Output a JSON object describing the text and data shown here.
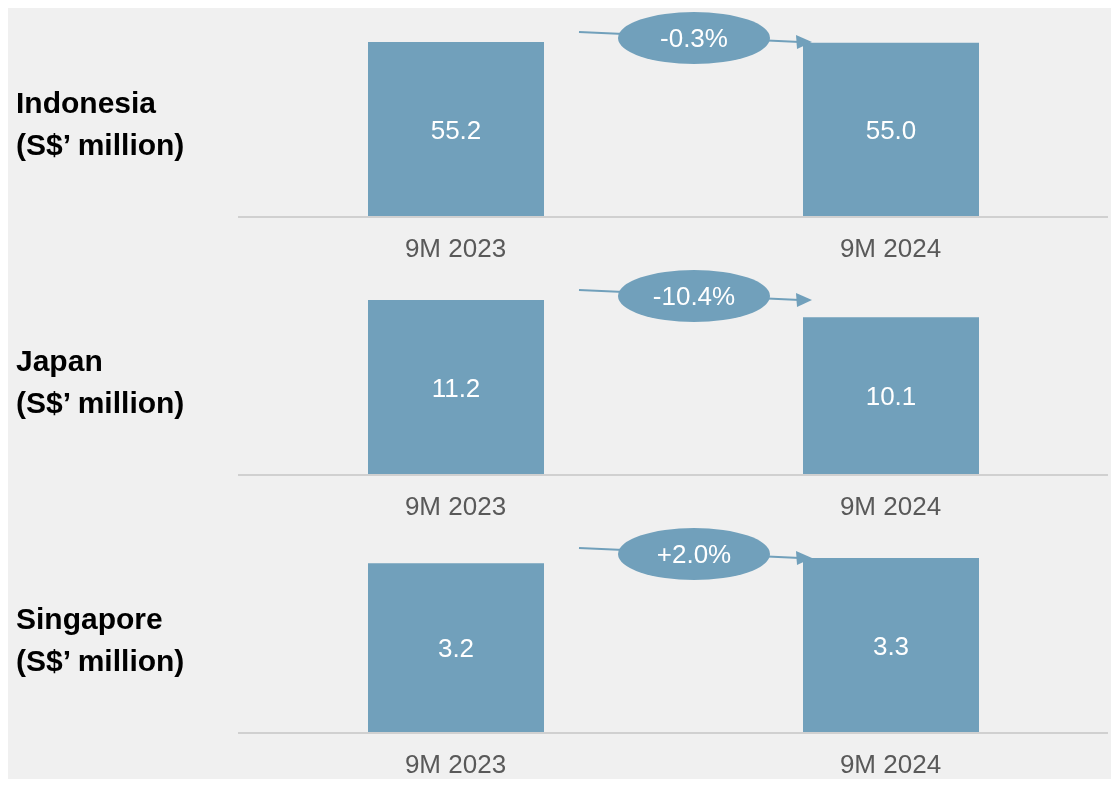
{
  "chart_data": [
    {
      "type": "bar",
      "ylabel": "Indonesia\n(S$’ million)",
      "categories": [
        "9M 2023",
        "9M 2024"
      ],
      "values": [
        55.2,
        55.0
      ],
      "value_labels": [
        "55.2",
        "55.0"
      ],
      "color": "#71a0bb",
      "grid": false,
      "legend": false,
      "annotations": [
        "-0.3%"
      ]
    },
    {
      "type": "bar",
      "ylabel": "Japan\n(S$’ million)",
      "categories": [
        "9M 2023",
        "9M 2024"
      ],
      "values": [
        11.2,
        10.1
      ],
      "value_labels": [
        "11.2",
        "10.1"
      ],
      "color": "#71a0bb",
      "grid": false,
      "legend": false,
      "annotations": [
        "-10.4%"
      ]
    },
    {
      "type": "bar",
      "ylabel": "Singapore\n(S$’ million)",
      "categories": [
        "9M 2023",
        "9M 2024"
      ],
      "values": [
        3.2,
        3.3
      ],
      "value_labels": [
        "3.2",
        "3.3"
      ],
      "color": "#71a0bb",
      "grid": false,
      "legend": false,
      "annotations": [
        "+2.0%"
      ]
    }
  ]
}
